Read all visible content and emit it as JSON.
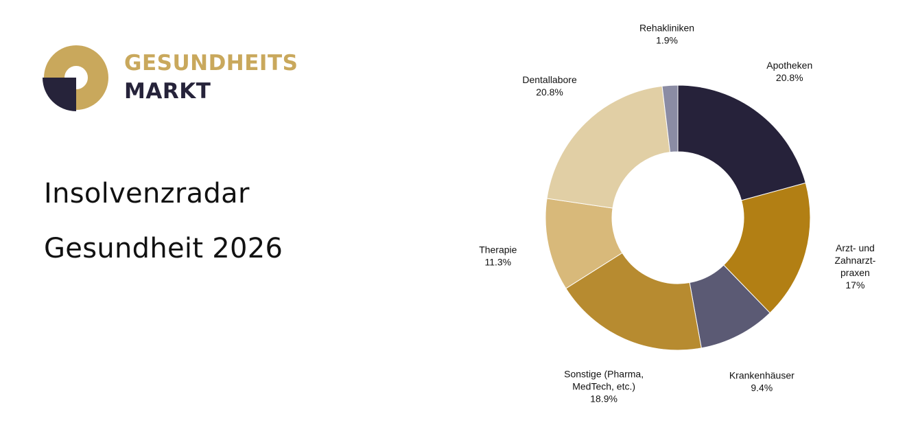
{
  "brand": {
    "line1": "GESUNDHEITS",
    "line2": "MARKT",
    "colors": {
      "gold": "#c9a85c",
      "navy": "#26233a"
    }
  },
  "headline": {
    "line1": "Insolvenzradar",
    "line2": "Gesundheit 2026"
  },
  "chart_data": {
    "type": "pie",
    "donut": true,
    "title": "",
    "slices": [
      {
        "label": [
          "Apotheken"
        ],
        "value_label": "20.8%",
        "value": 20.8,
        "color": "#26223a"
      },
      {
        "label": [
          "Arzt- und",
          "Zahnarzt-",
          "praxen"
        ],
        "value_label": "17%",
        "value": 17.0,
        "color": "#b27f14"
      },
      {
        "label": [
          "Krankenhäuser"
        ],
        "value_label": "9.4%",
        "value": 9.4,
        "color": "#5b5a74"
      },
      {
        "label": [
          "Sonstige (Pharma,",
          "MedTech, etc.)"
        ],
        "value_label": "18.9%",
        "value": 18.9,
        "color": "#b78b30"
      },
      {
        "label": [
          "Therapie"
        ],
        "value_label": "11.3%",
        "value": 11.3,
        "color": "#d8b97a"
      },
      {
        "label": [
          "Dentallabore"
        ],
        "value_label": "20.8%",
        "value": 20.8,
        "color": "#e1cfa5"
      },
      {
        "label": [
          "Rehakliniken"
        ],
        "value_label": "1.9%",
        "value": 1.9,
        "color": "#8b8ca4"
      }
    ]
  }
}
